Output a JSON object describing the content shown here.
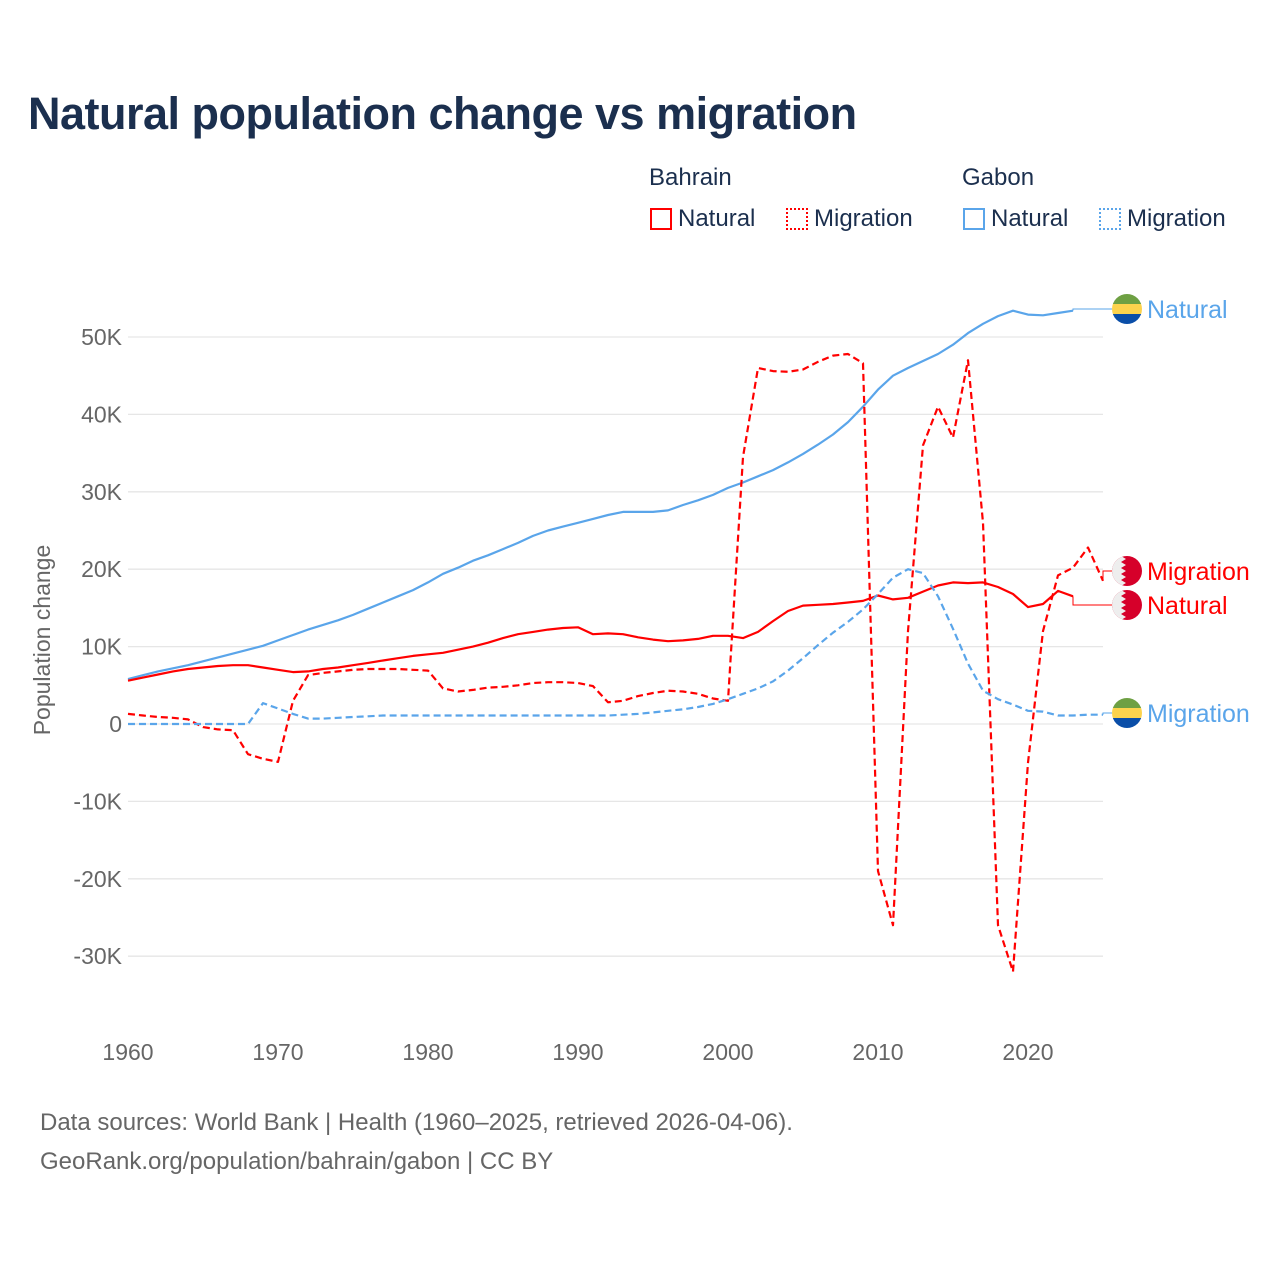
{
  "title": "Natural population change vs migration",
  "legend": {
    "groups": [
      {
        "name": "Bahrain",
        "items": [
          "Natural",
          "Migration"
        ]
      },
      {
        "name": "Gabon",
        "items": [
          "Natural",
          "Migration"
        ]
      }
    ]
  },
  "colors": {
    "bahrain": "#ff0000",
    "gabon": "#5aa5ea",
    "title": "#1b2f4e"
  },
  "footer": {
    "line1": "Data sources: World Bank | Health (1960–2025, retrieved 2026-04-06).",
    "line2": "GeoRank.org/population/bahrain/gabon | CC BY"
  },
  "chart_data": {
    "type": "line",
    "title": "Natural population change vs migration",
    "xlabel": "",
    "ylabel": "Population change",
    "xlim": [
      1960,
      2025
    ],
    "ylim": [
      -35000,
      55000
    ],
    "x_ticks": [
      1960,
      1970,
      1980,
      1990,
      2000,
      2010,
      2020
    ],
    "x_tick_labels": [
      "1960",
      "1970",
      "1980",
      "1990",
      "2000",
      "2010",
      "2020"
    ],
    "y_ticks": [
      -30000,
      -20000,
      -10000,
      0,
      10000,
      20000,
      30000,
      40000,
      50000
    ],
    "y_tick_labels": [
      "-30K",
      "-20K",
      "-10K",
      "0",
      "10K",
      "20K",
      "30K",
      "40K",
      "50K"
    ],
    "grid": true,
    "start_year": 1960,
    "series": [
      {
        "name": "Gabon Natural",
        "country": "Gabon",
        "kind": "Natural",
        "label": "Natural",
        "flag": "gabon",
        "values": [
          5.8,
          6.3,
          6.8,
          7.2,
          7.6,
          8.1,
          8.6,
          9.1,
          9.6,
          10.1,
          10.8,
          11.5,
          12.2,
          12.8,
          13.4,
          14.1,
          14.9,
          15.7,
          16.5,
          17.3,
          18.3,
          19.4,
          20.2,
          21.1,
          21.8,
          22.6,
          23.4,
          24.3,
          25.0,
          25.5,
          26.0,
          26.5,
          27.0,
          27.4,
          27.4,
          27.4,
          27.6,
          28.3,
          28.9,
          29.6,
          30.5,
          31.2,
          32.0,
          32.8,
          33.8,
          34.9,
          36.1,
          37.4,
          39.0,
          41.0,
          43.2,
          45.0,
          46.0,
          46.9,
          47.8,
          49.0,
          50.5,
          51.7,
          52.7,
          53.4,
          52.9,
          52.8,
          53.1,
          53.4
        ]
      },
      {
        "name": "Bahrain Migration",
        "country": "Bahrain",
        "kind": "Migration",
        "label": "Migration",
        "flag": "bahrain",
        "values": [
          1.3,
          1.1,
          0.9,
          0.8,
          0.6,
          -0.4,
          -0.7,
          -0.8,
          -3.9,
          -4.5,
          -4.9,
          3.0,
          6.3,
          6.6,
          6.8,
          7.0,
          7.1,
          7.1,
          7.1,
          7.0,
          6.9,
          4.6,
          4.2,
          4.4,
          4.7,
          4.8,
          5.0,
          5.3,
          5.4,
          5.4,
          5.3,
          4.9,
          2.8,
          3.0,
          3.6,
          4.0,
          4.3,
          4.2,
          3.9,
          3.3,
          3.0,
          34.5,
          46.0,
          45.6,
          45.5,
          45.8,
          46.8,
          47.6,
          47.8,
          46.6,
          -19,
          -26,
          12,
          36,
          41,
          37,
          47,
          26,
          -26,
          -32,
          -5,
          12,
          19.2,
          20.2,
          22.8,
          18.5
        ]
      },
      {
        "name": "Bahrain Natural",
        "country": "Bahrain",
        "kind": "Natural",
        "label": "Natural",
        "flag": "bahrain",
        "values": [
          5.6,
          6.0,
          6.4,
          6.8,
          7.1,
          7.3,
          7.5,
          7.6,
          7.6,
          7.3,
          7.0,
          6.7,
          6.8,
          7.1,
          7.3,
          7.6,
          7.9,
          8.2,
          8.5,
          8.8,
          9.0,
          9.2,
          9.6,
          10.0,
          10.5,
          11.1,
          11.6,
          11.9,
          12.2,
          12.4,
          12.5,
          11.6,
          11.7,
          11.6,
          11.2,
          10.9,
          10.7,
          10.8,
          11.0,
          11.4,
          11.4,
          11.1,
          11.9,
          13.3,
          14.6,
          15.3,
          15.4,
          15.5,
          15.7,
          15.9,
          16.6,
          16.1,
          16.3,
          17.1,
          17.9,
          18.3,
          18.2,
          18.3,
          17.7,
          16.8,
          15.1,
          15.5,
          17.2,
          16.5
        ]
      },
      {
        "name": "Gabon Migration",
        "country": "Gabon",
        "kind": "Migration",
        "label": "Migration",
        "flag": "gabon",
        "values": [
          0,
          0,
          0,
          0,
          0,
          0,
          0,
          0,
          0,
          2.7,
          2.0,
          1.3,
          0.7,
          0.7,
          0.8,
          0.9,
          1.0,
          1.1,
          1.1,
          1.1,
          1.1,
          1.1,
          1.1,
          1.1,
          1.1,
          1.1,
          1.1,
          1.1,
          1.1,
          1.1,
          1.1,
          1.1,
          1.1,
          1.2,
          1.3,
          1.5,
          1.7,
          1.9,
          2.2,
          2.6,
          3.2,
          3.9,
          4.6,
          5.5,
          6.9,
          8.5,
          10.2,
          11.8,
          13.2,
          14.8,
          16.8,
          18.9,
          20.0,
          19.5,
          16.5,
          12.3,
          7.8,
          4.3,
          3.2,
          2.5,
          1.7,
          1.6,
          1.1,
          1.1,
          1.2,
          1.2
        ]
      }
    ],
    "value_unit": "thousands"
  }
}
